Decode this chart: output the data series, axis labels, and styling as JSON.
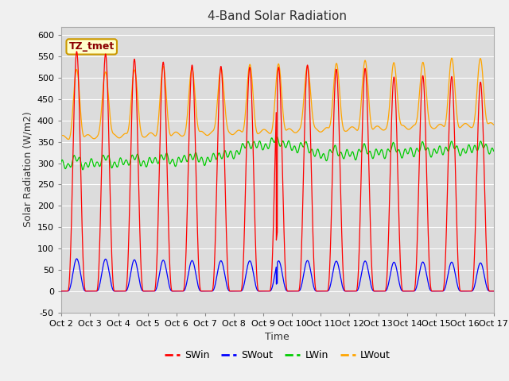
{
  "title": "4-Band Solar Radiation",
  "xlabel": "Time",
  "ylabel": "Solar Radiation (W/m2)",
  "annotation": "TZ_tmet",
  "ylim": [
    -50,
    620
  ],
  "xlim": [
    0,
    15
  ],
  "yticks": [
    -50,
    0,
    50,
    100,
    150,
    200,
    250,
    300,
    350,
    400,
    450,
    500,
    550,
    600
  ],
  "x_tick_labels": [
    "Oct 2",
    "Oct 3",
    "Oct 4",
    "Oct 5",
    "Oct 6",
    "Oct 7",
    "Oct 8",
    "Oct 9",
    "Oct 10",
    "Oct 11",
    "Oct 12",
    "Oct 13",
    "Oct 14",
    "Oct 15",
    "Oct 16",
    "Oct 17"
  ],
  "colors": {
    "SWin": "#ff0000",
    "SWout": "#0000ff",
    "LWin": "#00cc00",
    "LWout": "#ffa500"
  },
  "fig_bg": "#f0f0f0",
  "plot_bg": "#dcdcdc",
  "SWin_peaks": [
    562,
    556,
    544,
    537,
    530,
    527,
    525,
    525,
    530,
    520,
    522,
    502,
    505,
    503,
    490
  ],
  "SWout_scale": 0.135,
  "n_days": 15
}
